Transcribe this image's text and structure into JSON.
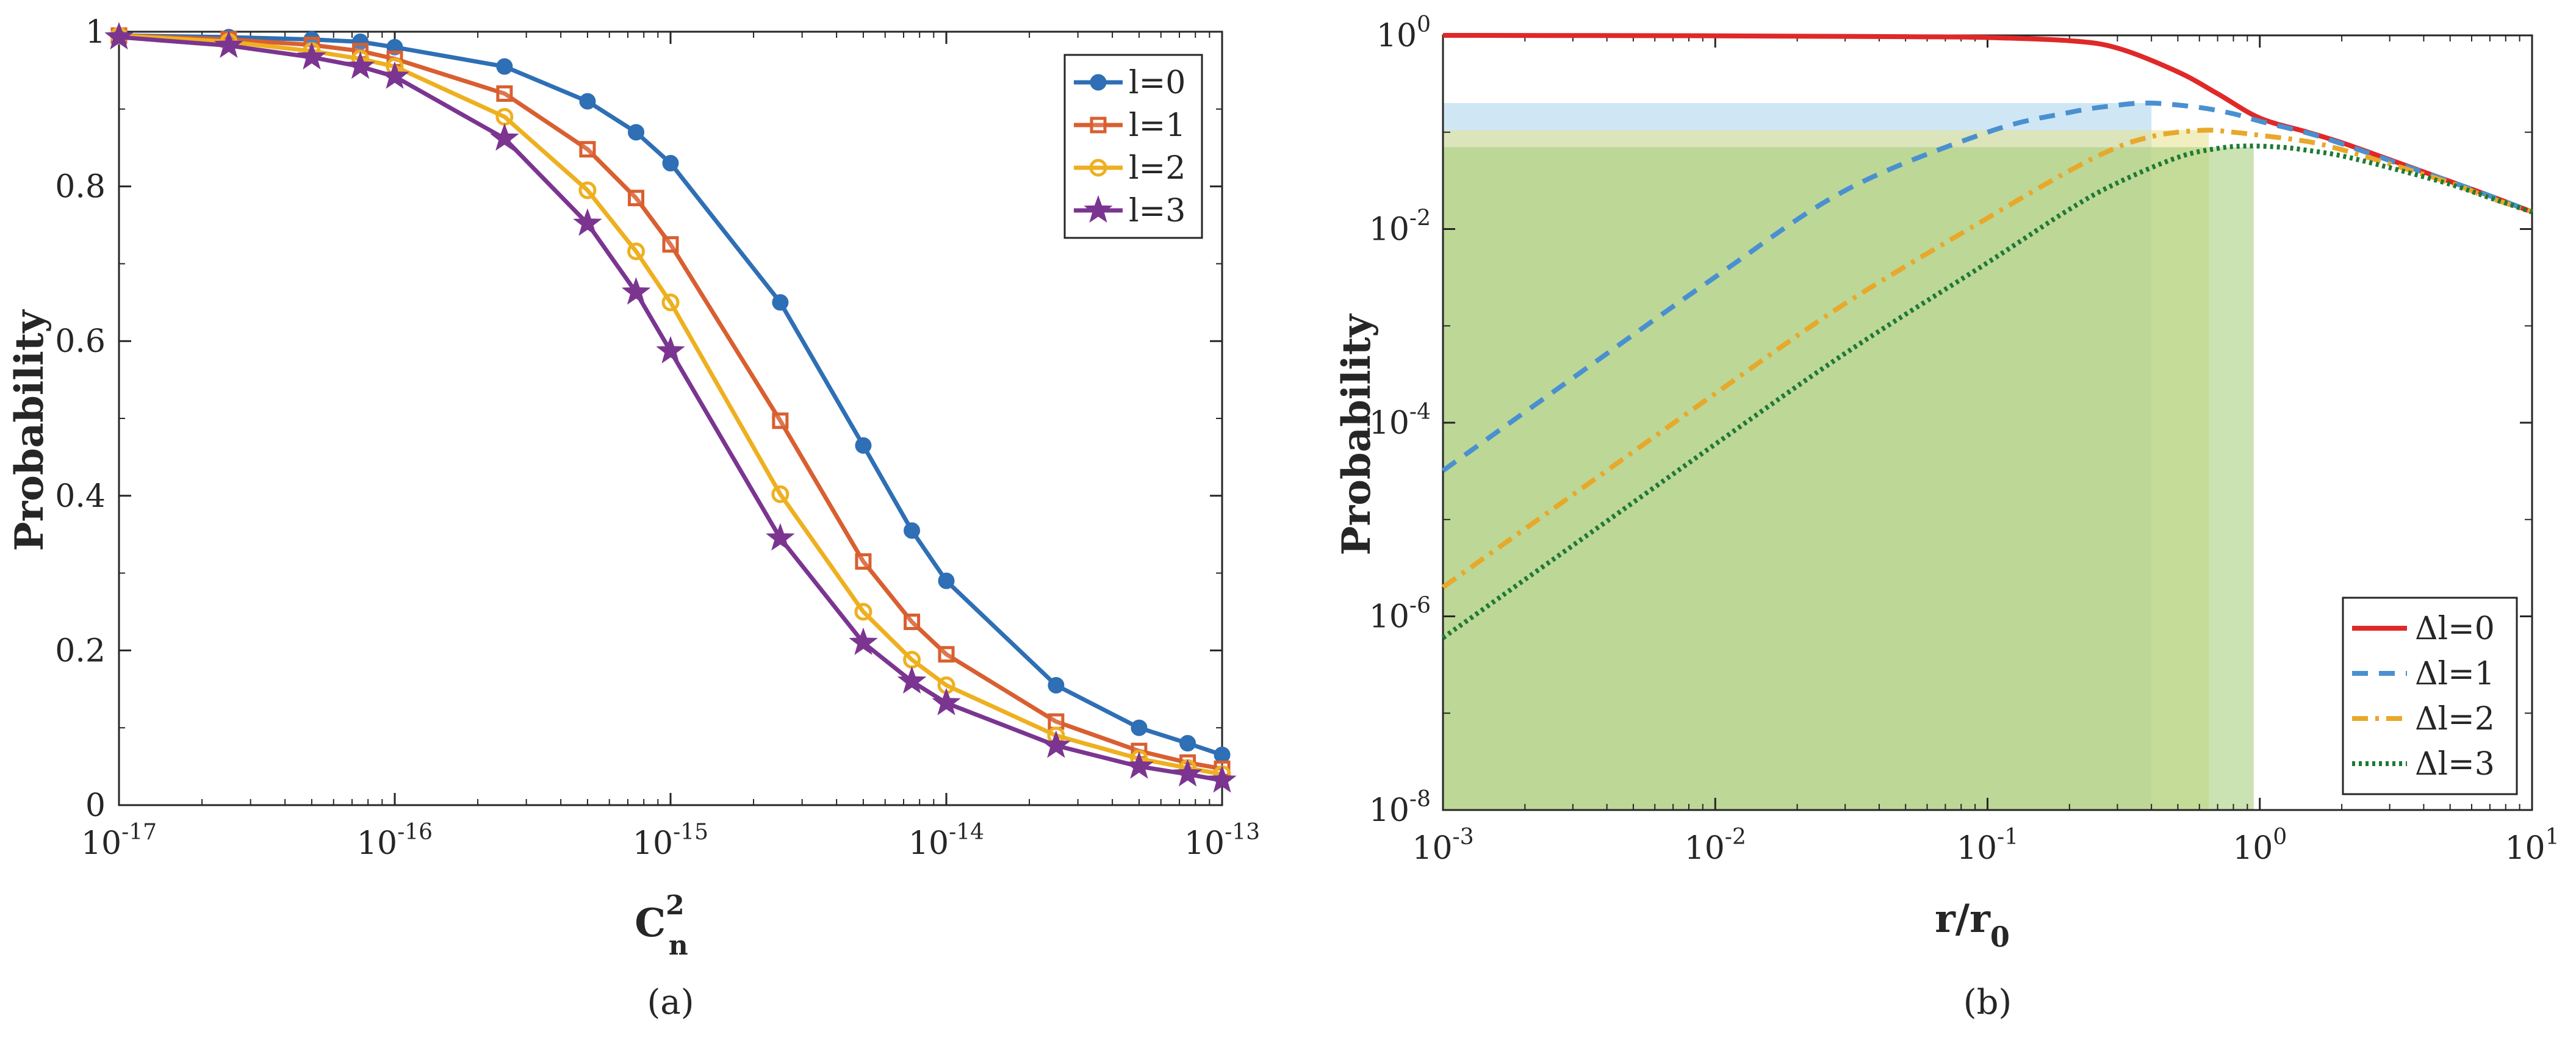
{
  "chart_data": [
    {
      "type": "line",
      "panel": "a",
      "caption": "(a)",
      "xscale": "log",
      "xlabel_base": "C",
      "xlabel_sup": "2",
      "xlabel_sub": "n",
      "ylabel": "Probability",
      "xlim": [
        1e-17,
        1e-13
      ],
      "ylim": [
        0,
        1
      ],
      "xticks": [
        {
          "base": "10",
          "exp": "-17",
          "value": 1e-17
        },
        {
          "base": "10",
          "exp": "-16",
          "value": 1e-16
        },
        {
          "base": "10",
          "exp": "-15",
          "value": 1e-15
        },
        {
          "base": "10",
          "exp": "-14",
          "value": 1e-14
        },
        {
          "base": "10",
          "exp": "-13",
          "value": 1e-13
        }
      ],
      "yticks": [
        {
          "label": "0",
          "value": 0
        },
        {
          "label": "0.2",
          "value": 0.2
        },
        {
          "label": "0.4",
          "value": 0.4
        },
        {
          "label": "0.6",
          "value": 0.6
        },
        {
          "label": "0.8",
          "value": 0.8
        },
        {
          "label": "1",
          "value": 1
        }
      ],
      "legend_position": "top-right",
      "x": [
        1e-17,
        2.5e-17,
        5e-17,
        7.5e-17,
        1e-16,
        2.5e-16,
        5e-16,
        7.5e-16,
        1e-15,
        2.5e-15,
        5e-15,
        7.5e-15,
        1e-14,
        2.5e-14,
        5e-14,
        7.5e-14,
        1e-13
      ],
      "series": [
        {
          "name": "l=0",
          "color": "#2e6fb5",
          "marker": "circle",
          "values": [
            0.995,
            0.993,
            0.99,
            0.987,
            0.98,
            0.955,
            0.91,
            0.87,
            0.83,
            0.65,
            0.465,
            0.355,
            0.29,
            0.155,
            0.1,
            0.08,
            0.065
          ]
        },
        {
          "name": "l=1",
          "color": "#d95f30",
          "marker": "square",
          "values": [
            0.995,
            0.99,
            0.983,
            0.975,
            0.965,
            0.92,
            0.848,
            0.785,
            0.725,
            0.497,
            0.315,
            0.237,
            0.195,
            0.108,
            0.07,
            0.055,
            0.047
          ]
        },
        {
          "name": "l=2",
          "color": "#eeb020",
          "marker": "circle-open",
          "values": [
            0.995,
            0.987,
            0.975,
            0.965,
            0.955,
            0.89,
            0.795,
            0.716,
            0.65,
            0.402,
            0.25,
            0.188,
            0.155,
            0.09,
            0.06,
            0.048,
            0.04
          ]
        },
        {
          "name": "l=3",
          "color": "#7b3591",
          "marker": "star",
          "values": [
            0.993,
            0.982,
            0.967,
            0.955,
            0.942,
            0.862,
            0.752,
            0.663,
            0.587,
            0.345,
            0.21,
            0.16,
            0.132,
            0.077,
            0.05,
            0.04,
            0.032
          ]
        }
      ]
    },
    {
      "type": "line",
      "panel": "b",
      "caption": "(b)",
      "xscale": "log",
      "yscale": "log",
      "xlabel_base": "r/r",
      "xlabel_sub": "0",
      "ylabel": "Probability",
      "xlim": [
        0.001,
        10
      ],
      "ylim": [
        1e-08,
        1
      ],
      "xticks": [
        {
          "base": "10",
          "exp": "-3",
          "value": 0.001
        },
        {
          "base": "10",
          "exp": "-2",
          "value": 0.01
        },
        {
          "base": "10",
          "exp": "-1",
          "value": 0.1
        },
        {
          "base": "10",
          "exp": "0",
          "value": 1
        },
        {
          "base": "10",
          "exp": "1",
          "value": 10
        }
      ],
      "yticks": [
        {
          "base": "10",
          "exp": "-8",
          "value": 1e-08
        },
        {
          "base": "10",
          "exp": "-6",
          "value": 1e-06
        },
        {
          "base": "10",
          "exp": "-4",
          "value": 0.0001
        },
        {
          "base": "10",
          "exp": "-2",
          "value": 0.01
        },
        {
          "base": "10",
          "exp": "0",
          "value": 1
        }
      ],
      "legend_position": "bottom-right",
      "shaded_regions": [
        {
          "color": "#a8d4ec",
          "opacity": 0.55,
          "x_max": 0.4,
          "y_max": 0.2
        },
        {
          "color": "#e6e28a",
          "opacity": 0.55,
          "x_max": 0.65,
          "y_max": 0.105
        },
        {
          "color": "#a9cf7e",
          "opacity": 0.6,
          "x_max": 0.95,
          "y_max": 0.07
        }
      ],
      "series": [
        {
          "name": "Δl=0",
          "color": "#e02828",
          "dash": "solid",
          "x": [
            0.001,
            0.01,
            0.05,
            0.1,
            0.2,
            0.3,
            0.5,
            0.7,
            1,
            1.5,
            2,
            3,
            5,
            7,
            10
          ],
          "values": [
            1.0,
            0.99,
            0.97,
            0.95,
            0.88,
            0.74,
            0.42,
            0.25,
            0.14,
            0.1,
            0.078,
            0.052,
            0.031,
            0.022,
            0.015
          ]
        },
        {
          "name": "Δl=1",
          "color": "#4a90d0",
          "dash": "dashed",
          "x": [
            0.001,
            0.003,
            0.01,
            0.03,
            0.1,
            0.2,
            0.3,
            0.4,
            0.6,
            0.8,
            1,
            1.5,
            2,
            3,
            5,
            7,
            10
          ],
          "values": [
            3.2e-05,
            0.00029,
            0.0032,
            0.025,
            0.1,
            0.16,
            0.19,
            0.2,
            0.18,
            0.155,
            0.13,
            0.098,
            0.076,
            0.051,
            0.031,
            0.022,
            0.015
          ]
        },
        {
          "name": "Δl=2",
          "color": "#e8a82a",
          "dash": "dashdot",
          "x": [
            0.001,
            0.003,
            0.01,
            0.03,
            0.1,
            0.2,
            0.3,
            0.4,
            0.5,
            0.65,
            0.8,
            1,
            1.5,
            2,
            3,
            5,
            7,
            10
          ],
          "values": [
            2e-06,
            1.8e-05,
            0.0002,
            0.0017,
            0.013,
            0.04,
            0.07,
            0.09,
            0.1,
            0.105,
            0.1,
            0.093,
            0.08,
            0.066,
            0.047,
            0.03,
            0.021,
            0.015
          ]
        },
        {
          "name": "Δl=3",
          "color": "#1e7a34",
          "dash": "dotted",
          "x": [
            0.001,
            0.003,
            0.01,
            0.03,
            0.1,
            0.2,
            0.3,
            0.5,
            0.7,
            0.9,
            1.2,
            1.5,
            2,
            3,
            5,
            7,
            10
          ],
          "values": [
            6e-07,
            5.4e-06,
            6e-05,
            0.00052,
            0.0045,
            0.016,
            0.03,
            0.055,
            0.068,
            0.072,
            0.07,
            0.065,
            0.057,
            0.043,
            0.029,
            0.021,
            0.015
          ]
        }
      ]
    }
  ]
}
